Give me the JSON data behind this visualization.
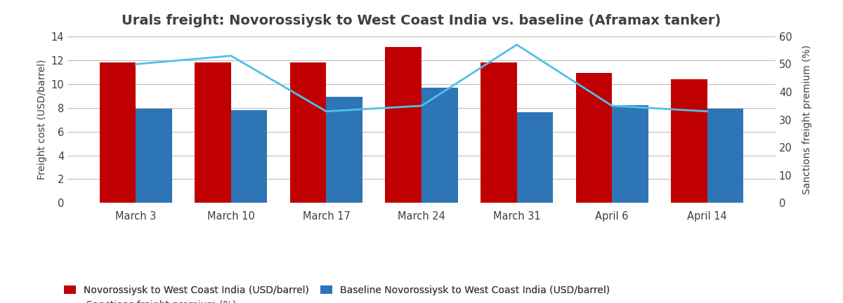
{
  "title": "Urals freight: Novorossiysk to West Coast India vs. baseline (Aframax tanker)",
  "categories": [
    "March 3",
    "March 10",
    "March 17",
    "March 24",
    "March 31",
    "April 6",
    "April 14"
  ],
  "red_bars": [
    11.8,
    11.8,
    11.8,
    13.1,
    11.8,
    10.9,
    10.4
  ],
  "blue_bars": [
    7.9,
    7.8,
    8.9,
    9.7,
    7.6,
    8.2,
    7.9
  ],
  "premium_line": [
    50,
    53,
    33,
    35,
    57,
    35,
    33
  ],
  "red_color": "#C00000",
  "blue_color": "#2E75B6",
  "line_color": "#4FC1E9",
  "ylabel_left": "Freight cost (USD/barrel)",
  "ylabel_right": "Sanctions freight premium (%)",
  "ylim_left": [
    0,
    14
  ],
  "ylim_right": [
    0,
    60
  ],
  "yticks_left": [
    0,
    2,
    4,
    6,
    8,
    10,
    12,
    14
  ],
  "yticks_right": [
    0,
    10,
    20,
    30,
    40,
    50,
    60
  ],
  "legend_red": "Novorossiysk to West Coast India (USD/barrel)",
  "legend_blue": "Baseline Novorossiysk to West Coast India (USD/barrel)",
  "legend_line": "Sanctions freight premium (%)",
  "bar_width": 0.38,
  "background_color": "#FFFFFF",
  "grid_color": "#BFBFBF",
  "title_fontsize": 14,
  "label_fontsize": 10,
  "tick_fontsize": 10.5,
  "legend_fontsize": 10,
  "text_color": "#404040"
}
